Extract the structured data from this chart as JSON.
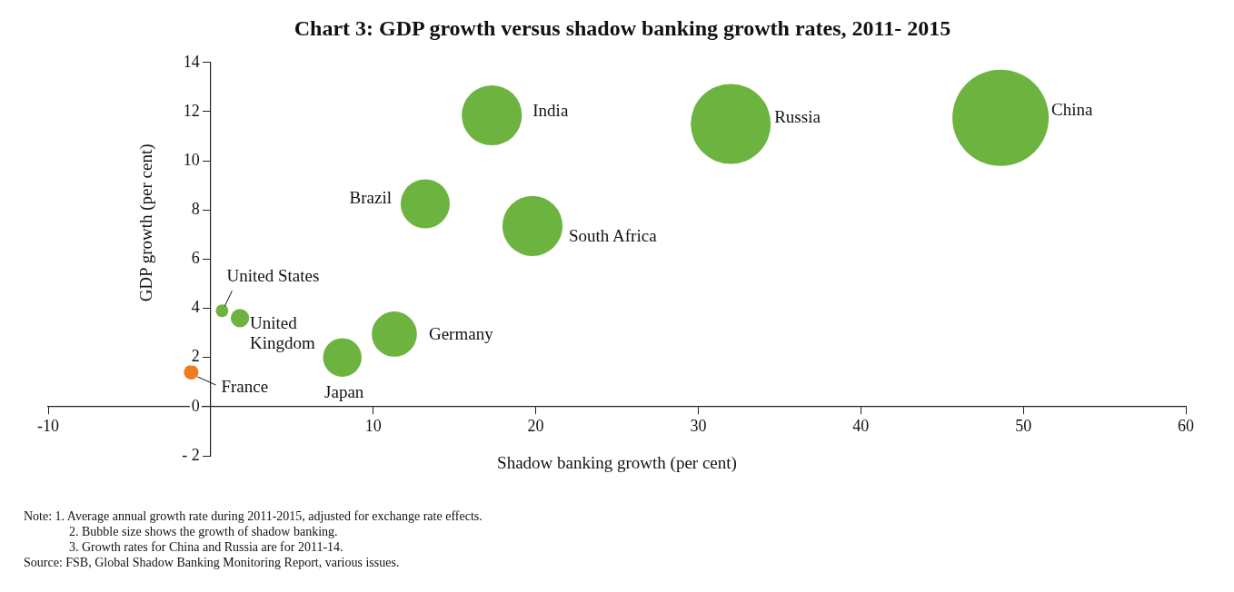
{
  "chart_data": {
    "type": "bubble",
    "title": "Chart 3: GDP growth versus shadow banking growth rates, 2011- 2015",
    "xlabel": "Shadow banking growth (per cent)",
    "ylabel": "GDP growth (per cent)",
    "x": [
      0.7,
      1.8,
      -1.2,
      8.1,
      11.3,
      13.2,
      17.3,
      19.8,
      32.0,
      48.6
    ],
    "series": [
      {
        "values": [
          3.9,
          3.6,
          1.4,
          2.0,
          2.95,
          8.25,
          11.85,
          7.35,
          11.5,
          11.75
        ],
        "sizes": [
          0.017,
          0.036,
          0.023,
          0.16,
          0.22,
          0.26,
          0.39,
          0.39,
          0.69,
          1
        ],
        "colors": [
          "#6cb33f",
          "#6cb33f",
          "#f07c22",
          "#6cb33f",
          "#6cb33f",
          "#6cb33f",
          "#6cb33f",
          "#6cb33f",
          "#6cb33f",
          "#6cb33f"
        ]
      }
    ],
    "xlim": [
      -10,
      60
    ],
    "xticks": [
      -10,
      {
        "value": 0,
        "label": null
      },
      10,
      20,
      30,
      40,
      50,
      60
    ],
    "ylim": [
      -2,
      14
    ],
    "yticks": [
      {
        "value": -2,
        "label": "- 2"
      },
      0,
      2,
      4,
      6,
      8,
      10,
      12,
      14
    ],
    "grid": false,
    "legend": false,
    "annotations": [
      {
        "text": "United States",
        "x": 0.7,
        "y": 3.9
      },
      {
        "text": "United\nKingdom",
        "x": 1.8,
        "y": 3.6
      },
      {
        "text": "France",
        "x": -1.2,
        "y": 1.4
      },
      {
        "text": "Japan",
        "x": 8.1,
        "y": 2.0
      },
      {
        "text": "Germany",
        "x": 11.3,
        "y": 2.95
      },
      {
        "text": "Brazil",
        "x": 13.2,
        "y": 8.25
      },
      {
        "text": "India",
        "x": 17.3,
        "y": 11.85
      },
      {
        "text": "South Africa",
        "x": 19.8,
        "y": 7.35
      },
      {
        "text": "Russia",
        "x": 32.0,
        "y": 11.5
      },
      {
        "text": "China",
        "x": 48.6,
        "y": 11.75
      },
      "Note: 1. Average annual growth rate during 2011-2015, adjusted for exchange rate effects.",
      "2. Bubble size shows the growth of shadow banking.",
      "3. Growth rates for China and Russia are for 2011-14.",
      "Source: FSB, Global Shadow Banking Monitoring Report, various issues."
    ]
  }
}
